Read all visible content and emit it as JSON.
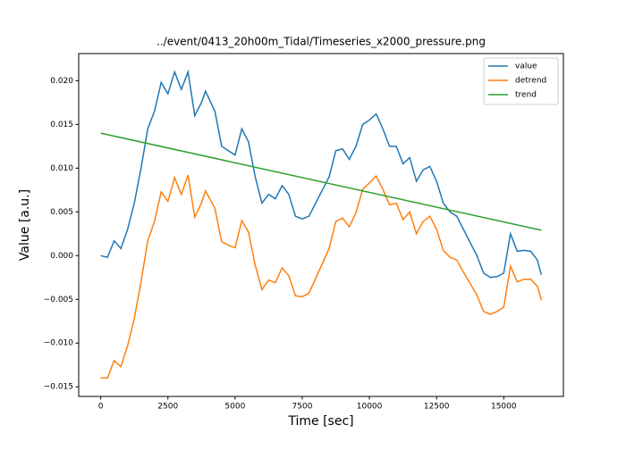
{
  "chart_data": {
    "type": "line",
    "title": "../event/0413_20h00m_Tidal/Timeseries_x2000_pressure.png",
    "x_label": "Time [sec]",
    "y_label": "Value [a.u.]",
    "x": [
      0,
      250,
      500,
      750,
      1000,
      1250,
      1500,
      1750,
      2000,
      2250,
      2500,
      2750,
      3000,
      3250,
      3500,
      3750,
      3900,
      4250,
      4500,
      4750,
      5000,
      5250,
      5500,
      5750,
      6000,
      6250,
      6500,
      6750,
      7000,
      7250,
      7500,
      7750,
      8000,
      8250,
      8500,
      8750,
      9000,
      9250,
      9500,
      9750,
      10000,
      10250,
      10500,
      10750,
      11000,
      11250,
      11500,
      11750,
      12000,
      12250,
      12500,
      12750,
      13000,
      13250,
      13500,
      13750,
      14000,
      14250,
      14500,
      14750,
      15000,
      15250,
      15500,
      15750,
      16000,
      16250,
      16400
    ],
    "series": [
      {
        "name": "value",
        "color": "#1f77b4",
        "values": [
          0.0,
          -0.0002,
          0.0017,
          0.0008,
          0.003,
          0.006,
          0.01,
          0.0145,
          0.0165,
          0.0198,
          0.0185,
          0.021,
          0.019,
          0.021,
          0.016,
          0.0175,
          0.0188,
          0.0165,
          0.0125,
          0.012,
          0.0115,
          0.0145,
          0.013,
          0.009,
          0.006,
          0.007,
          0.0065,
          0.008,
          0.007,
          0.0045,
          0.0042,
          0.0045,
          0.006,
          0.0075,
          0.009,
          0.012,
          0.0122,
          0.011,
          0.0125,
          0.015,
          0.0155,
          0.0162,
          0.0145,
          0.0125,
          0.0125,
          0.0105,
          0.0112,
          0.0085,
          0.0098,
          0.0102,
          0.0085,
          0.006,
          0.005,
          0.0045,
          0.003,
          0.0015,
          0.0,
          -0.002,
          -0.0025,
          -0.0024,
          -0.002,
          0.0025,
          0.0005,
          0.0006,
          0.0005,
          -0.0005,
          -0.0022
        ]
      },
      {
        "name": "detrend",
        "color": "#ff7f0e",
        "values": [
          -0.014,
          -0.014,
          -0.012,
          -0.0127,
          -0.0103,
          -0.0072,
          -0.003,
          0.0017,
          0.0039,
          0.0073,
          0.0062,
          0.0089,
          0.007,
          0.0092,
          0.0044,
          0.006,
          0.0074,
          0.0054,
          0.0016,
          0.0012,
          0.0009,
          0.004,
          0.0027,
          -0.0011,
          -0.0039,
          -0.0028,
          -0.0031,
          -0.0014,
          -0.0023,
          -0.0046,
          -0.0047,
          -0.0043,
          -0.0026,
          -0.0009,
          0.0008,
          0.0039,
          0.0043,
          0.0033,
          0.0049,
          0.0076,
          0.0083,
          0.0091,
          0.0076,
          0.0058,
          0.006,
          0.0041,
          0.005,
          0.0025,
          0.0039,
          0.0045,
          0.003,
          0.0006,
          -0.0002,
          -0.0005,
          -0.0019,
          -0.0032,
          -0.0045,
          -0.0064,
          -0.0067,
          -0.0064,
          -0.0059,
          -0.0012,
          -0.003,
          -0.0027,
          -0.0027,
          -0.0035,
          -0.0051
        ]
      },
      {
        "name": "trend",
        "color": "#2ca02c",
        "x": [
          0,
          16400
        ],
        "values": [
          0.014,
          0.0029
        ]
      }
    ],
    "xlim": [
      -820,
      17220
    ],
    "ylim": [
      -0.0161,
      0.0231
    ],
    "xticks": [
      0,
      2500,
      5000,
      7500,
      10000,
      12500,
      15000
    ],
    "yticks": [
      {
        "value": -0.015,
        "label": "−0.015"
      },
      {
        "value": -0.01,
        "label": "−0.010"
      },
      {
        "value": -0.005,
        "label": "−0.005"
      },
      {
        "value": 0,
        "label": "0.000"
      },
      {
        "value": 0.005,
        "label": "0.005"
      },
      {
        "value": 0.01,
        "label": "0.010"
      },
      {
        "value": 0.015,
        "label": "0.015"
      },
      {
        "value": 0.02,
        "label": "0.020"
      }
    ],
    "legend": "upper right",
    "grid": false
  }
}
